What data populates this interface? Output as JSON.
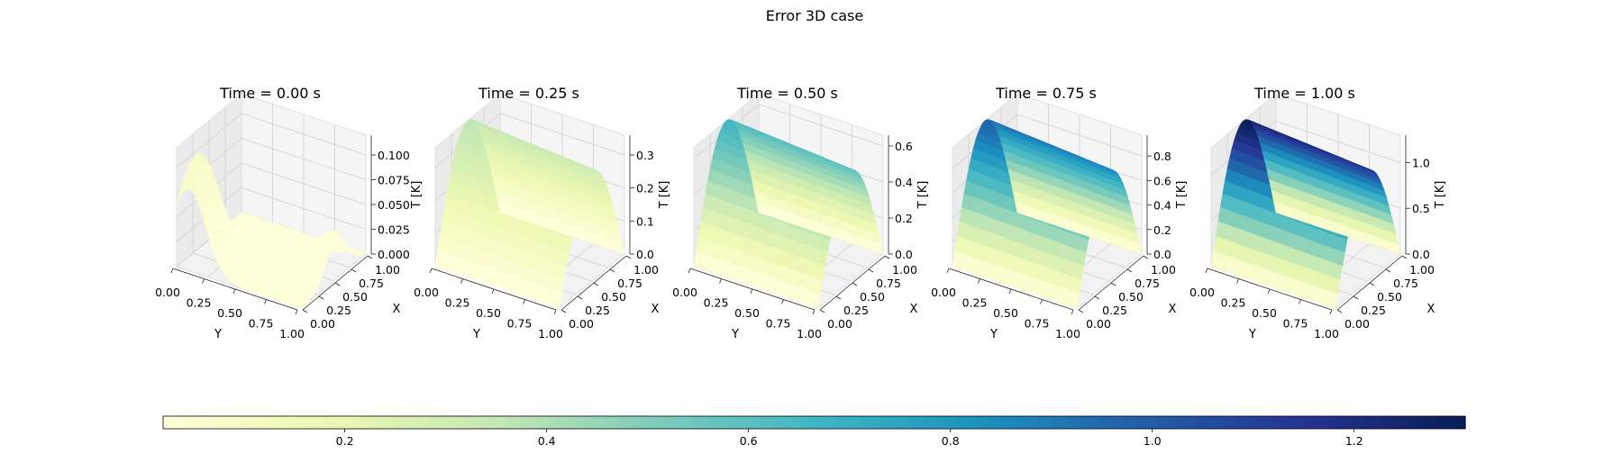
{
  "figure": {
    "title": "Error 3D case"
  },
  "colormap": [
    "#ffffd9",
    "#edf8b1",
    "#c7e9b4",
    "#7fcdbb",
    "#41b6c4",
    "#1d91c0",
    "#225ea8",
    "#253494",
    "#081d58"
  ],
  "chart_data": [
    {
      "type": "surface3d",
      "title": "Time = 0.00 s",
      "xlabel": "Y",
      "ylabel": "X",
      "zlabel": "T [K]",
      "shape": "bump",
      "zmax": 0.12,
      "x_ticks": [
        "0.00",
        "0.25",
        "0.50",
        "0.75",
        "1.00"
      ],
      "y_ticks": [
        "0.00",
        "0.25",
        "0.50",
        "0.75",
        "1.00"
      ],
      "z_ticks": [
        0,
        0.025,
        0.05,
        0.075,
        0.1
      ],
      "z_tick_labels": [
        "0.000",
        "0.025",
        "0.050",
        "0.075",
        "0.100"
      ]
    },
    {
      "type": "surface3d",
      "title": "Time = 0.25 s",
      "xlabel": "Y",
      "ylabel": "X",
      "zlabel": "T [K]",
      "shape": "ridge",
      "zmax": 0.36,
      "x_ticks": [
        "0.00",
        "0.25",
        "0.50",
        "0.75",
        "1.00"
      ],
      "y_ticks": [
        "0.00",
        "0.25",
        "0.50",
        "0.75",
        "1.00"
      ],
      "z_ticks": [
        0,
        0.1,
        0.2,
        0.3
      ],
      "z_tick_labels": [
        "0.0",
        "0.1",
        "0.2",
        "0.3"
      ]
    },
    {
      "type": "surface3d",
      "title": "Time = 0.50 s",
      "xlabel": "Y",
      "ylabel": "X",
      "zlabel": "T [K]",
      "shape": "ridge",
      "zmax": 0.66,
      "x_ticks": [
        "0.00",
        "0.25",
        "0.50",
        "0.75",
        "1.00"
      ],
      "y_ticks": [
        "0.00",
        "0.25",
        "0.50",
        "0.75",
        "1.00"
      ],
      "z_ticks": [
        0,
        0.2,
        0.4,
        0.6
      ],
      "z_tick_labels": [
        "0.0",
        "0.2",
        "0.4",
        "0.6"
      ]
    },
    {
      "type": "surface3d",
      "title": "Time = 0.75 s",
      "xlabel": "Y",
      "ylabel": "X",
      "zlabel": "T [K]",
      "shape": "ridge",
      "zmax": 0.97,
      "x_ticks": [
        "0.00",
        "0.25",
        "0.50",
        "0.75",
        "1.00"
      ],
      "y_ticks": [
        "0.00",
        "0.25",
        "0.50",
        "0.75",
        "1.00"
      ],
      "z_ticks": [
        0,
        0.2,
        0.4,
        0.6,
        0.8
      ],
      "z_tick_labels": [
        "0.0",
        "0.2",
        "0.4",
        "0.6",
        "0.8"
      ]
    },
    {
      "type": "surface3d",
      "title": "Time = 1.00 s",
      "xlabel": "Y",
      "ylabel": "X",
      "zlabel": "T [K]",
      "shape": "ridge",
      "zmax": 1.3,
      "x_ticks": [
        "0.00",
        "0.25",
        "0.50",
        "0.75",
        "1.00"
      ],
      "y_ticks": [
        "0.00",
        "0.25",
        "0.50",
        "0.75",
        "1.00"
      ],
      "z_ticks": [
        0,
        0.5,
        1.0
      ],
      "z_tick_labels": [
        "0.0",
        "0.5",
        "1.0"
      ]
    }
  ],
  "colorbar": {
    "range": [
      0.02,
      1.31
    ],
    "ticks": [
      0.2,
      0.4,
      0.6,
      0.8,
      1.0,
      1.2
    ],
    "tick_labels": [
      "0.2",
      "0.4",
      "0.6",
      "0.8",
      "1.0",
      "1.2"
    ]
  }
}
